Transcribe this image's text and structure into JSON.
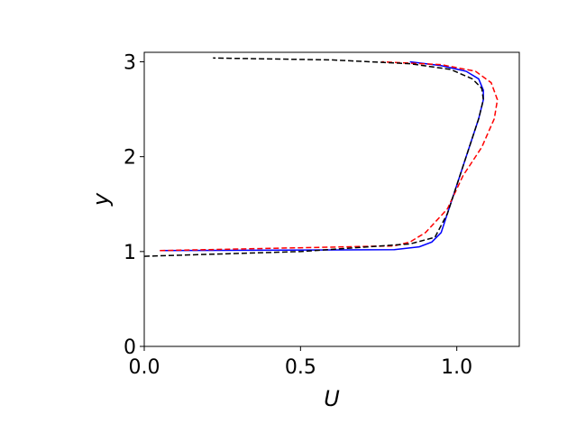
{
  "chart_data": {
    "type": "line",
    "xlabel": "U",
    "ylabel": "y",
    "xlim": [
      0,
      1.2
    ],
    "ylim": [
      0,
      3.1
    ],
    "xticks": [
      {
        "value": 0,
        "label": "0.0"
      },
      0.5,
      {
        "value": 1,
        "label": "1.0"
      }
    ],
    "yticks": [
      0,
      1,
      2,
      3
    ],
    "series": [
      {
        "color": "#0000ff",
        "dash": false,
        "x": [
          0.05,
          0.8,
          0.88,
          0.92,
          0.95,
          0.98,
          1.01,
          1.04,
          1.07,
          1.085,
          1.085,
          1.07,
          1.03,
          0.95,
          0.85
        ],
        "values": [
          1.01,
          1.02,
          1.05,
          1.1,
          1.2,
          1.5,
          1.8,
          2.1,
          2.4,
          2.6,
          2.7,
          2.82,
          2.9,
          2.96,
          3.0
        ]
      },
      {
        "color": "#ff0000",
        "dash": true,
        "x": [
          0.05,
          0.8,
          0.85,
          0.9,
          0.97,
          1.02,
          1.08,
          1.12,
          1.13,
          1.11,
          1.06,
          0.95,
          0.76
        ],
        "values": [
          1.01,
          1.06,
          1.1,
          1.2,
          1.45,
          1.8,
          2.1,
          2.4,
          2.6,
          2.78,
          2.9,
          2.97,
          3.0
        ]
      },
      {
        "color": "#000000",
        "dash": true,
        "x": [
          0.0,
          0.5,
          0.85,
          0.93,
          0.97,
          1.0,
          1.04,
          1.07,
          1.085,
          1.08,
          1.05,
          0.98,
          0.85,
          0.6,
          0.22
        ],
        "values": [
          0.95,
          1.0,
          1.08,
          1.15,
          1.4,
          1.7,
          2.1,
          2.4,
          2.6,
          2.72,
          2.82,
          2.92,
          2.98,
          3.02,
          3.04
        ]
      }
    ]
  }
}
